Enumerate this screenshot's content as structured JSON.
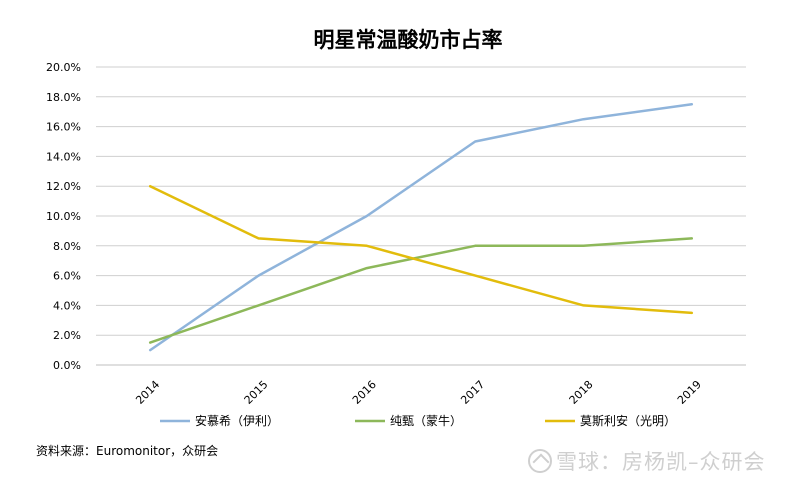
{
  "chart_data": {
    "type": "line",
    "title": "明星常温酸奶市占率",
    "categories": [
      "2014",
      "2015",
      "2016",
      "2017",
      "2018",
      "2019"
    ],
    "ylim": [
      0,
      20
    ],
    "ytick_labels": [
      "0.0%",
      "2.0%",
      "4.0%",
      "6.0%",
      "8.0%",
      "10.0%",
      "12.0%",
      "14.0%",
      "16.0%",
      "18.0%",
      "20.0%"
    ],
    "grid": true,
    "legend_position": "bottom",
    "series": [
      {
        "name": "安慕希（伊利）",
        "color": "#8FB4DB",
        "values": [
          1.0,
          6.0,
          10.0,
          15.0,
          16.5,
          17.5
        ]
      },
      {
        "name": "纯甄（蒙牛）",
        "color": "#8DB85A",
        "values": [
          1.5,
          4.0,
          6.5,
          8.0,
          8.0,
          8.5
        ]
      },
      {
        "name": "莫斯利安（光明）",
        "color": "#E2BC0C",
        "values": [
          12.0,
          8.5,
          8.0,
          6.0,
          4.0,
          3.5
        ]
      }
    ]
  },
  "source": "资料来源：Euromonitor，众研会",
  "watermark": "雪球：房杨凯–众研会"
}
